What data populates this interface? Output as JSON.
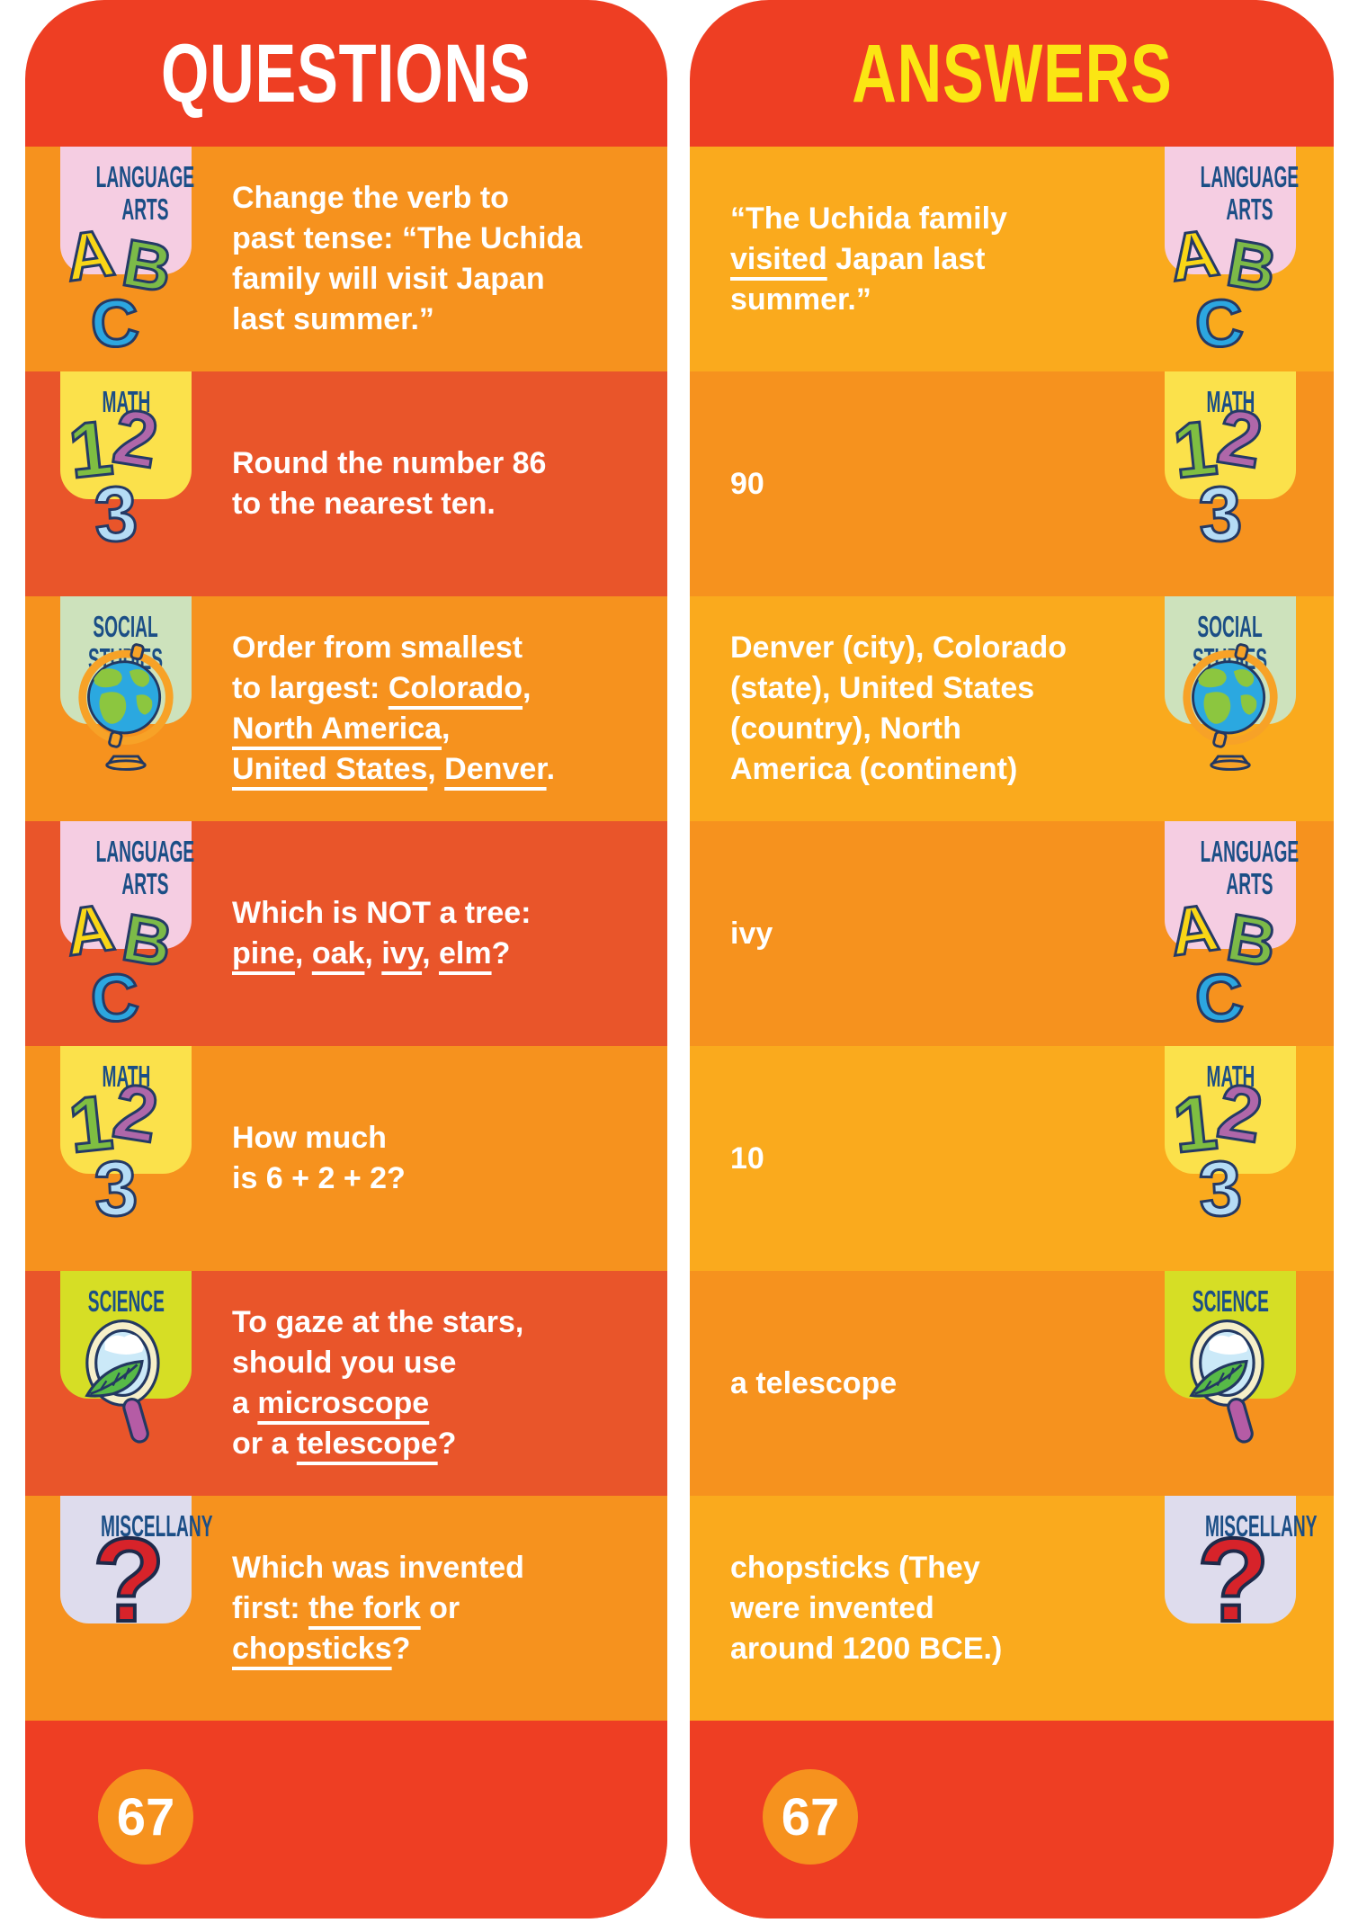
{
  "page_number": "67",
  "palette": {
    "header_red": "#EE3E23",
    "orange_row": "#F6921E",
    "red_orange_row": "#E9552A",
    "amber_row": "#FAAA1D",
    "badge_pink": "#F5CDE2",
    "badge_yellow": "#FBE14B",
    "badge_green": "#CDE2BC",
    "badge_chartreuse": "#D6DE25",
    "badge_lavender": "#DEDCED",
    "badge_label_navy": "#1B4E86",
    "title_white": "#FFFFFF",
    "title_yellow": "#FBE613",
    "text_white": "#FFFFFF",
    "letter_a_yellow": "#F9D616",
    "letter_b_green": "#7CBA48",
    "letter_c_blue": "#2CA6E0",
    "digit_1_green": "#7FBE41",
    "digit_2_purple": "#AF67A9",
    "digit_3_blue": "#B5DCF5",
    "question_mark_red": "#D7232A",
    "page_circle_orange": "#F6921E"
  },
  "panels": [
    {
      "title": "QUESTIONS",
      "rows": [
        {
          "category": "language-arts",
          "badge": {
            "lines": [
              "LANGUAGE",
              "ARTS"
            ],
            "icon": "abc-letters-icon",
            "glyphs": [
              {
                "ch": "A",
                "cls": "letter-a"
              },
              {
                "ch": "B",
                "cls": "letter-b"
              },
              {
                "ch": "C",
                "cls": "letter-c"
              }
            ]
          },
          "segments": [
            {
              "t": "Change the verb to"
            },
            {
              "br": true
            },
            {
              "t": "past tense: “The Uchida"
            },
            {
              "br": true
            },
            {
              "t": "family will visit Japan"
            },
            {
              "br": true
            },
            {
              "t": "last summer.”"
            }
          ]
        },
        {
          "category": "math",
          "badge": {
            "lines": [
              "MATH"
            ],
            "icon": "numbers-123-icon",
            "glyphs": [
              {
                "ch": "1",
                "cls": "digit-1"
              },
              {
                "ch": "2",
                "cls": "digit-2"
              },
              {
                "ch": "3",
                "cls": "digit-3"
              }
            ]
          },
          "segments": [
            {
              "t": "Round the number 86"
            },
            {
              "br": true
            },
            {
              "t": "to the nearest ten."
            }
          ]
        },
        {
          "category": "social-studies",
          "badge": {
            "lines": [
              "SOCIAL",
              "STUDIES"
            ],
            "icon": "globe-icon"
          },
          "segments": [
            {
              "t": "Order from smallest"
            },
            {
              "br": true
            },
            {
              "t": "to largest: "
            },
            {
              "t": "Colorado",
              "u": true
            },
            {
              "t": ","
            },
            {
              "br": true
            },
            {
              "t": "North America",
              "u": true
            },
            {
              "t": ","
            },
            {
              "br": true
            },
            {
              "t": "United States",
              "u": true
            },
            {
              "t": ", "
            },
            {
              "t": "Denver",
              "u": true
            },
            {
              "t": "."
            }
          ]
        },
        {
          "category": "language-arts",
          "badge": {
            "lines": [
              "LANGUAGE",
              "ARTS"
            ],
            "icon": "abc-letters-icon",
            "glyphs": [
              {
                "ch": "A",
                "cls": "letter-a"
              },
              {
                "ch": "B",
                "cls": "letter-b"
              },
              {
                "ch": "C",
                "cls": "letter-c"
              }
            ]
          },
          "segments": [
            {
              "t": "Which is NOT a tree:"
            },
            {
              "br": true
            },
            {
              "t": "pine",
              "u": true
            },
            {
              "t": ", "
            },
            {
              "t": "oak",
              "u": true
            },
            {
              "t": ", "
            },
            {
              "t": "ivy",
              "u": true
            },
            {
              "t": ", "
            },
            {
              "t": "elm",
              "u": true
            },
            {
              "t": "?"
            }
          ]
        },
        {
          "category": "math",
          "badge": {
            "lines": [
              "MATH"
            ],
            "icon": "numbers-123-icon",
            "glyphs": [
              {
                "ch": "1",
                "cls": "digit-1"
              },
              {
                "ch": "2",
                "cls": "digit-2"
              },
              {
                "ch": "3",
                "cls": "digit-3"
              }
            ]
          },
          "segments": [
            {
              "t": "How much"
            },
            {
              "br": true
            },
            {
              "t": "is 6 + 2 + 2?"
            }
          ]
        },
        {
          "category": "science",
          "badge": {
            "lines": [
              "SCIENCE"
            ],
            "icon": "magnifier-leaf-icon"
          },
          "segments": [
            {
              "t": "To gaze at the stars,"
            },
            {
              "br": true
            },
            {
              "t": "should you use"
            },
            {
              "br": true
            },
            {
              "t": "a "
            },
            {
              "t": "microscope",
              "u": true
            },
            {
              "br": true
            },
            {
              "t": "or a "
            },
            {
              "t": "telescope",
              "u": true
            },
            {
              "t": "?"
            }
          ]
        },
        {
          "category": "miscellany",
          "badge": {
            "lines": [
              "MISCELLANY"
            ],
            "icon": "question-mark-icon",
            "glyphs": [
              {
                "ch": "?",
                "cls": "qmark"
              }
            ]
          },
          "segments": [
            {
              "t": "Which was invented"
            },
            {
              "br": true
            },
            {
              "t": "first: "
            },
            {
              "t": "the fork",
              "u": true
            },
            {
              "t": " or"
            },
            {
              "br": true
            },
            {
              "t": "chopsticks",
              "u": true
            },
            {
              "t": "?"
            }
          ]
        }
      ]
    },
    {
      "title": "ANSWERS",
      "rows": [
        {
          "category": "language-arts",
          "badge": {
            "lines": [
              "LANGUAGE",
              "ARTS"
            ],
            "icon": "abc-letters-icon",
            "glyphs": [
              {
                "ch": "A",
                "cls": "letter-a"
              },
              {
                "ch": "B",
                "cls": "letter-b"
              },
              {
                "ch": "C",
                "cls": "letter-c"
              }
            ]
          },
          "segments": [
            {
              "t": "“The Uchida family"
            },
            {
              "br": true
            },
            {
              "t": "visited",
              "u": true
            },
            {
              "t": " Japan last"
            },
            {
              "br": true
            },
            {
              "t": "summer.”"
            }
          ]
        },
        {
          "category": "math",
          "badge": {
            "lines": [
              "MATH"
            ],
            "icon": "numbers-123-icon",
            "glyphs": [
              {
                "ch": "1",
                "cls": "digit-1"
              },
              {
                "ch": "2",
                "cls": "digit-2"
              },
              {
                "ch": "3",
                "cls": "digit-3"
              }
            ]
          },
          "segments": [
            {
              "t": "90"
            }
          ]
        },
        {
          "category": "social-studies",
          "badge": {
            "lines": [
              "SOCIAL",
              "STUDIES"
            ],
            "icon": "globe-icon"
          },
          "segments": [
            {
              "t": "Denver (city), Colorado"
            },
            {
              "br": true
            },
            {
              "t": "(state), United States"
            },
            {
              "br": true
            },
            {
              "t": "(country), North"
            },
            {
              "br": true
            },
            {
              "t": "America (continent)"
            }
          ]
        },
        {
          "category": "language-arts",
          "badge": {
            "lines": [
              "LANGUAGE",
              "ARTS"
            ],
            "icon": "abc-letters-icon",
            "glyphs": [
              {
                "ch": "A",
                "cls": "letter-a"
              },
              {
                "ch": "B",
                "cls": "letter-b"
              },
              {
                "ch": "C",
                "cls": "letter-c"
              }
            ]
          },
          "segments": [
            {
              "t": "ivy"
            }
          ]
        },
        {
          "category": "math",
          "badge": {
            "lines": [
              "MATH"
            ],
            "icon": "numbers-123-icon",
            "glyphs": [
              {
                "ch": "1",
                "cls": "digit-1"
              },
              {
                "ch": "2",
                "cls": "digit-2"
              },
              {
                "ch": "3",
                "cls": "digit-3"
              }
            ]
          },
          "segments": [
            {
              "t": "10"
            }
          ]
        },
        {
          "category": "science",
          "badge": {
            "lines": [
              "SCIENCE"
            ],
            "icon": "magnifier-leaf-icon"
          },
          "segments": [
            {
              "t": "a telescope"
            }
          ]
        },
        {
          "category": "miscellany",
          "badge": {
            "lines": [
              "MISCELLANY"
            ],
            "icon": "question-mark-icon",
            "glyphs": [
              {
                "ch": "?",
                "cls": "qmark"
              }
            ]
          },
          "segments": [
            {
              "t": "chopsticks (They"
            },
            {
              "br": true
            },
            {
              "t": "were invented"
            },
            {
              "br": true
            },
            {
              "t": "around 1200 BCE.)"
            }
          ]
        }
      ]
    }
  ]
}
